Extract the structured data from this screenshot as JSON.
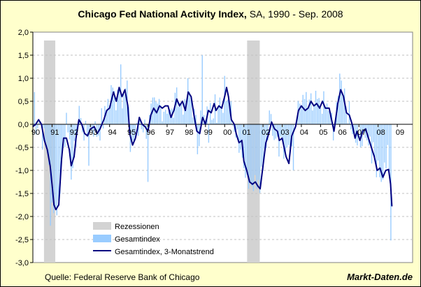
{
  "title": {
    "main": "Chicago Fed National Activity Index,",
    "suffix": " SA, 1990 - Sep. 2008"
  },
  "source": "Quelle: Federal Reserve Bank of Chicago",
  "brand": "Markt-Daten.de",
  "colors": {
    "background": "#ffffcc",
    "plot_background": "#ffffff",
    "recession": "#d3d3d3",
    "bars": "#99ccff",
    "line": "#000080",
    "grid": "#c0c0c0"
  },
  "chart_data": {
    "type": "bar",
    "title": "Chicago Fed National Activity Index, SA, 1990 - Sep. 2008",
    "ylim": [
      -3.0,
      2.0
    ],
    "y_ticks": [
      "2,0",
      "1,5",
      "1,0",
      "0,5",
      "0,0",
      "-0,5",
      "-1,0",
      "-1,5",
      "-2,0",
      "-2,5",
      "-3,0"
    ],
    "x_tick_labels": [
      "90",
      "91",
      "92",
      "93",
      "94",
      "95",
      "96",
      "97",
      "98",
      "99",
      "00",
      "01",
      "02",
      "03",
      "04",
      "05",
      "06",
      "07",
      "08",
      "09"
    ],
    "x_tick_years": [
      1990,
      1991,
      1992,
      1993,
      1994,
      1995,
      1996,
      1997,
      1998,
      1999,
      2000,
      2001,
      2002,
      2003,
      2004,
      2005,
      2006,
      2007,
      2008,
      2009
    ],
    "x_range": [
      1990.0,
      2009.8
    ],
    "grid": "horizontal dashed",
    "legend_position": "bottom-left",
    "legend": [
      "Rezessionen",
      "Gesamtindex",
      "Gesamtindex, 3-Monatstrend"
    ],
    "recessions": [
      [
        1990.58,
        1991.17
      ],
      [
        2001.17,
        2001.83
      ]
    ],
    "trend_anchors": [
      [
        1990.0,
        -0.05
      ],
      [
        1990.15,
        0.0
      ],
      [
        1990.3,
        0.1
      ],
      [
        1990.45,
        0.0
      ],
      [
        1990.6,
        -0.35
      ],
      [
        1990.75,
        -0.55
      ],
      [
        1990.9,
        -0.9
      ],
      [
        1991.0,
        -1.3
      ],
      [
        1991.1,
        -1.75
      ],
      [
        1991.2,
        -1.85
      ],
      [
        1991.35,
        -1.75
      ],
      [
        1991.5,
        -0.75
      ],
      [
        1991.6,
        -0.3
      ],
      [
        1991.75,
        -0.3
      ],
      [
        1991.9,
        -0.55
      ],
      [
        1992.0,
        -0.9
      ],
      [
        1992.15,
        -0.7
      ],
      [
        1992.25,
        -0.3
      ],
      [
        1992.4,
        0.1
      ],
      [
        1992.55,
        0.0
      ],
      [
        1992.7,
        -0.2
      ],
      [
        1992.85,
        -0.25
      ],
      [
        1993.0,
        -0.1
      ],
      [
        1993.2,
        -0.05
      ],
      [
        1993.35,
        -0.2
      ],
      [
        1993.5,
        -0.1
      ],
      [
        1993.7,
        0.1
      ],
      [
        1993.85,
        0.3
      ],
      [
        1994.0,
        0.35
      ],
      [
        1994.2,
        0.7
      ],
      [
        1994.35,
        0.5
      ],
      [
        1994.5,
        0.8
      ],
      [
        1994.65,
        0.6
      ],
      [
        1994.8,
        0.75
      ],
      [
        1994.95,
        0.4
      ],
      [
        1995.05,
        -0.2
      ],
      [
        1995.2,
        -0.45
      ],
      [
        1995.35,
        -0.3
      ],
      [
        1995.45,
        -0.1
      ],
      [
        1995.55,
        0.15
      ],
      [
        1995.7,
        0.0
      ],
      [
        1995.85,
        -0.05
      ],
      [
        1996.0,
        -0.15
      ],
      [
        1996.15,
        0.2
      ],
      [
        1996.3,
        0.35
      ],
      [
        1996.45,
        0.25
      ],
      [
        1996.6,
        0.4
      ],
      [
        1996.75,
        0.35
      ],
      [
        1996.9,
        0.4
      ],
      [
        1997.05,
        0.4
      ],
      [
        1997.2,
        0.15
      ],
      [
        1997.35,
        0.3
      ],
      [
        1997.5,
        0.55
      ],
      [
        1997.65,
        0.4
      ],
      [
        1997.8,
        0.5
      ],
      [
        1997.95,
        0.3
      ],
      [
        1998.1,
        0.7
      ],
      [
        1998.25,
        0.6
      ],
      [
        1998.4,
        0.2
      ],
      [
        1998.55,
        -0.15
      ],
      [
        1998.7,
        -0.2
      ],
      [
        1998.85,
        0.15
      ],
      [
        1999.0,
        0.0
      ],
      [
        1999.15,
        0.3
      ],
      [
        1999.3,
        0.25
      ],
      [
        1999.45,
        0.45
      ],
      [
        1999.55,
        0.3
      ],
      [
        1999.7,
        0.4
      ],
      [
        1999.85,
        0.35
      ],
      [
        2000.0,
        0.6
      ],
      [
        2000.1,
        0.8
      ],
      [
        2000.2,
        0.6
      ],
      [
        2000.35,
        0.1
      ],
      [
        2000.5,
        0.0
      ],
      [
        2000.6,
        -0.2
      ],
      [
        2000.75,
        -0.4
      ],
      [
        2000.9,
        -0.35
      ],
      [
        2001.0,
        -0.8
      ],
      [
        2001.15,
        -1.0
      ],
      [
        2001.3,
        -1.25
      ],
      [
        2001.45,
        -1.3
      ],
      [
        2001.6,
        -1.25
      ],
      [
        2001.75,
        -1.35
      ],
      [
        2001.85,
        -1.4
      ],
      [
        2002.0,
        -0.9
      ],
      [
        2002.15,
        -0.4
      ],
      [
        2002.3,
        -0.2
      ],
      [
        2002.45,
        0.05
      ],
      [
        2002.6,
        -0.1
      ],
      [
        2002.75,
        -0.15
      ],
      [
        2002.85,
        -0.35
      ],
      [
        2003.0,
        -0.3
      ],
      [
        2003.2,
        -0.7
      ],
      [
        2003.35,
        -0.85
      ],
      [
        2003.5,
        -0.25
      ],
      [
        2003.7,
        -0.05
      ],
      [
        2003.85,
        0.3
      ],
      [
        2004.0,
        0.4
      ],
      [
        2004.2,
        0.3
      ],
      [
        2004.35,
        0.35
      ],
      [
        2004.5,
        0.5
      ],
      [
        2004.65,
        0.4
      ],
      [
        2004.8,
        0.45
      ],
      [
        2004.95,
        0.35
      ],
      [
        2005.1,
        0.5
      ],
      [
        2005.25,
        0.35
      ],
      [
        2005.45,
        0.35
      ],
      [
        2005.55,
        0.15
      ],
      [
        2005.7,
        -0.15
      ],
      [
        2005.8,
        0.15
      ],
      [
        2005.9,
        0.45
      ],
      [
        2006.05,
        0.75
      ],
      [
        2006.2,
        0.6
      ],
      [
        2006.35,
        0.25
      ],
      [
        2006.5,
        0.2
      ],
      [
        2006.65,
        0.0
      ],
      [
        2006.8,
        -0.3
      ],
      [
        2006.9,
        -0.15
      ],
      [
        2007.05,
        -0.35
      ],
      [
        2007.2,
        -0.15
      ],
      [
        2007.35,
        -0.1
      ],
      [
        2007.5,
        -0.3
      ],
      [
        2007.65,
        -0.5
      ],
      [
        2007.8,
        -0.7
      ],
      [
        2007.95,
        -1.0
      ],
      [
        2008.1,
        -0.95
      ],
      [
        2008.25,
        -1.15
      ],
      [
        2008.4,
        -1.0
      ],
      [
        2008.55,
        -0.98
      ],
      [
        2008.65,
        -1.3
      ],
      [
        2008.72,
        -1.78
      ]
    ],
    "bar_spikes": [
      [
        1990.08,
        0.7
      ],
      [
        1990.5,
        -0.55
      ],
      [
        1990.92,
        -2.2
      ],
      [
        1991.0,
        -1.7
      ],
      [
        1991.75,
        0.25
      ],
      [
        1992.0,
        -1.2
      ],
      [
        1992.1,
        -0.95
      ],
      [
        1992.4,
        0.4
      ],
      [
        1992.9,
        -0.9
      ],
      [
        1993.6,
        0.35
      ],
      [
        1993.95,
        0.55
      ],
      [
        1994.1,
        0.85
      ],
      [
        1994.4,
        0.75
      ],
      [
        1994.55,
        1.3
      ],
      [
        1994.9,
        0.95
      ],
      [
        1995.1,
        -0.6
      ],
      [
        1995.25,
        -0.35
      ],
      [
        1995.5,
        -0.25
      ],
      [
        1996.0,
        -1.25
      ],
      [
        1996.2,
        0.45
      ],
      [
        1996.55,
        0.55
      ],
      [
        1997.5,
        0.8
      ],
      [
        1997.9,
        0.55
      ],
      [
        1998.05,
        1.0
      ],
      [
        1998.6,
        -0.65
      ],
      [
        1998.75,
        0.3
      ],
      [
        1998.8,
        1.5
      ],
      [
        1999.15,
        -0.4
      ],
      [
        1999.5,
        0.65
      ],
      [
        1999.85,
        0.4
      ],
      [
        2000.0,
        1.05
      ],
      [
        2000.3,
        0.5
      ],
      [
        2000.85,
        -0.55
      ],
      [
        2001.0,
        -0.95
      ],
      [
        2001.5,
        -1.45
      ],
      [
        2001.7,
        -1.4
      ],
      [
        2002.0,
        -1.0
      ],
      [
        2002.35,
        0.3
      ],
      [
        2002.8,
        -0.7
      ],
      [
        2003.1,
        -0.75
      ],
      [
        2003.3,
        -0.45
      ],
      [
        2003.55,
        -1.0
      ],
      [
        2003.9,
        0.45
      ],
      [
        2004.25,
        0.7
      ],
      [
        2004.55,
        0.3
      ],
      [
        2004.85,
        0.55
      ],
      [
        2005.3,
        0.45
      ],
      [
        2005.5,
        0.2
      ],
      [
        2005.7,
        -0.35
      ],
      [
        2006.0,
        1.1
      ],
      [
        2006.1,
        0.95
      ],
      [
        2006.5,
        0.5
      ],
      [
        2006.85,
        -0.4
      ],
      [
        2007.1,
        -0.5
      ],
      [
        2007.4,
        -0.35
      ],
      [
        2007.7,
        -0.85
      ],
      [
        2007.9,
        -1.15
      ],
      [
        2008.2,
        -1.25
      ],
      [
        2008.5,
        -0.45
      ],
      [
        2008.62,
        -1.0
      ],
      [
        2008.7,
        -2.52
      ]
    ]
  }
}
